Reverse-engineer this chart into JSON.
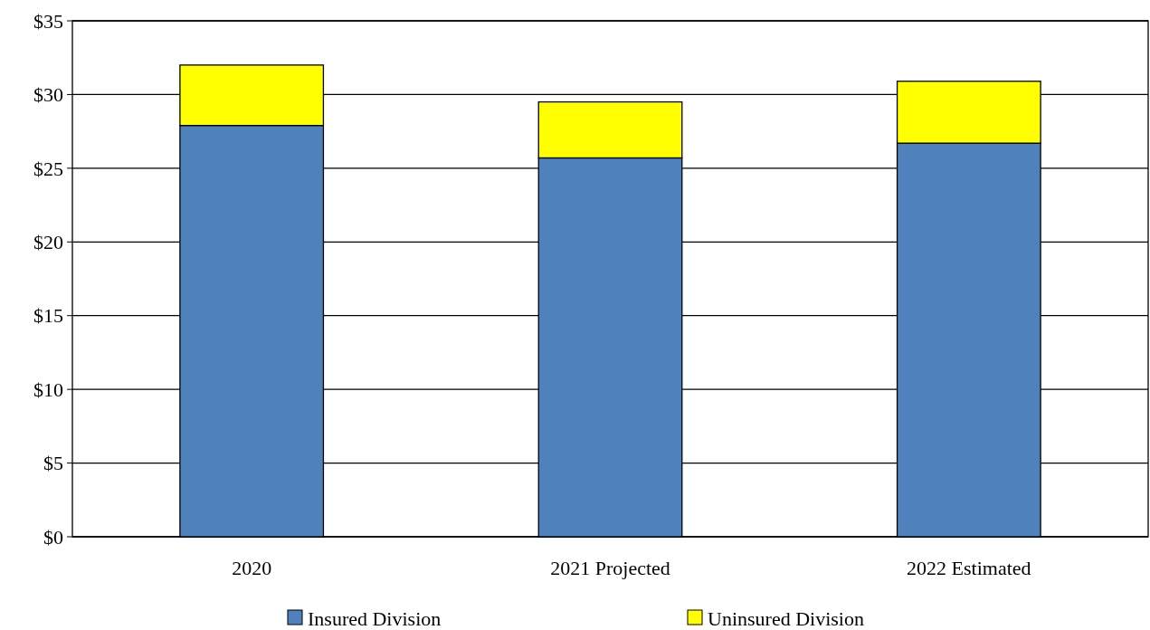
{
  "chart_data": {
    "type": "bar",
    "stacked": true,
    "categories": [
      "2020",
      "2021 Projected",
      "2022 Estimated"
    ],
    "series": [
      {
        "name": "Insured Division",
        "color": "#4f81bd",
        "values": [
          27.9,
          25.7,
          26.7
        ]
      },
      {
        "name": "Uninsured Division",
        "color": "#ffff00",
        "values": [
          4.1,
          3.8,
          4.2
        ]
      }
    ],
    "ylim": [
      0,
      35
    ],
    "yticks": [
      {
        "value": 0,
        "label": "$0"
      },
      {
        "value": 5,
        "label": "$5"
      },
      {
        "value": 10,
        "label": "$10"
      },
      {
        "value": 15,
        "label": "$15"
      },
      {
        "value": 20,
        "label": "$20"
      },
      {
        "value": 25,
        "label": "$25"
      },
      {
        "value": 30,
        "label": "$30"
      },
      {
        "value": 35,
        "label": "$35"
      }
    ],
    "grid": "y",
    "legend": "bottom"
  }
}
